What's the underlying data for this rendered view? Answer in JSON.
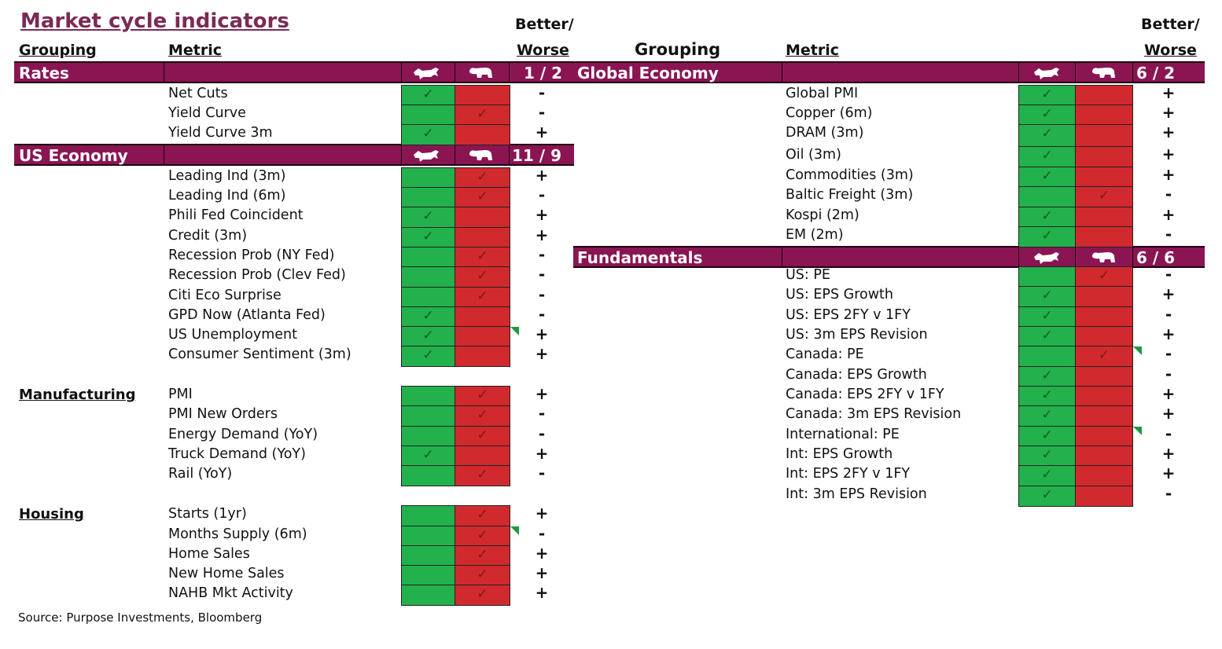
{
  "title": "Market cycle indicators",
  "headers": {
    "grouping": "Grouping",
    "metric": "Metric",
    "better": "Better/",
    "worse": "Worse",
    "right_grouping": "Grouping",
    "right_metric": "Metric",
    "right_better": "Better/",
    "right_worse": "Worse"
  },
  "icons": {
    "bull": "bull-icon",
    "bear": "bear-icon",
    "check": "✓"
  },
  "colors": {
    "band": "#8a1552",
    "green": "#22b14c",
    "red": "#d02a2f",
    "title": "#7b2a55"
  },
  "bands": {
    "rates": {
      "label": "Rates",
      "score": "1 / 2"
    },
    "us_economy": {
      "label": "US Economy",
      "score": "11 / 9"
    },
    "global_economy": {
      "label": "Global Economy",
      "score": "6 / 2"
    },
    "fundamentals": {
      "label": "Fundamentals",
      "score": "6 / 6"
    }
  },
  "sections": {
    "manufacturing": "Manufacturing",
    "housing": "Housing"
  },
  "left_rows": [
    {
      "metric": "Net Cuts",
      "check": "bull",
      "sign": "-"
    },
    {
      "metric": "Yield Curve",
      "check": "bear",
      "sign": "-"
    },
    {
      "metric": "Yield Curve 3m",
      "check": "bull",
      "sign": "+"
    },
    {
      "metric": "Leading Ind (3m)",
      "check": "bear",
      "sign": "+"
    },
    {
      "metric": "Leading Ind (6m)",
      "check": "bear",
      "sign": "-"
    },
    {
      "metric": "Phili Fed Coincident",
      "check": "bull",
      "sign": "+"
    },
    {
      "metric": "Credit (3m)",
      "check": "bull",
      "sign": "+"
    },
    {
      "metric": "Recession Prob (NY Fed)",
      "check": "bear",
      "sign": "-"
    },
    {
      "metric": "Recession Prob (Clev Fed)",
      "check": "bear",
      "sign": "-"
    },
    {
      "metric": "Citi Eco Surprise",
      "check": "bear",
      "sign": "-"
    },
    {
      "metric": "GPD Now (Atlanta Fed)",
      "check": "bull",
      "sign": "-"
    },
    {
      "metric": "US Unemployment",
      "check": "bull",
      "sign": "+"
    },
    {
      "metric": "Consumer Sentiment (3m)",
      "check": "bull",
      "sign": "+"
    },
    {
      "metric": "PMI",
      "check": "bear",
      "sign": "+"
    },
    {
      "metric": "PMI New Orders",
      "check": "bear",
      "sign": "-"
    },
    {
      "metric": "Energy Demand (YoY)",
      "check": "bear",
      "sign": "-"
    },
    {
      "metric": "Truck Demand (YoY)",
      "check": "bull",
      "sign": "+"
    },
    {
      "metric": "Rail (YoY)",
      "check": "bear",
      "sign": "-"
    },
    {
      "metric": "Starts (1yr)",
      "check": "bear",
      "sign": "+"
    },
    {
      "metric": "Months Supply (6m)",
      "check": "bear",
      "sign": "-"
    },
    {
      "metric": "Home Sales",
      "check": "bear",
      "sign": "+"
    },
    {
      "metric": "New Home Sales",
      "check": "bear",
      "sign": "+"
    },
    {
      "metric": "NAHB Mkt Activity",
      "check": "bear",
      "sign": "+"
    }
  ],
  "right_rows": [
    {
      "metric": "Global PMI",
      "check": "bull",
      "sign": "+"
    },
    {
      "metric": "Copper (6m)",
      "check": "bull",
      "sign": "+"
    },
    {
      "metric": "DRAM (3m)",
      "check": "bull",
      "sign": "+"
    },
    {
      "metric": "Oil (3m)",
      "check": "bull",
      "sign": "+"
    },
    {
      "metric": "Commodities (3m)",
      "check": "bull",
      "sign": "+"
    },
    {
      "metric": "Baltic Freight (3m)",
      "check": "bear",
      "sign": "-"
    },
    {
      "metric": "Kospi (2m)",
      "check": "bull",
      "sign": "+"
    },
    {
      "metric": "EM (2m)",
      "check": "bull",
      "sign": "-"
    },
    {
      "metric": "US: PE",
      "check": "bear",
      "sign": "-"
    },
    {
      "metric": "US: EPS Growth",
      "check": "bull",
      "sign": "+"
    },
    {
      "metric": "US: EPS 2FY v 1FY",
      "check": "bull",
      "sign": "-"
    },
    {
      "metric": "US: 3m EPS Revision",
      "check": "bull",
      "sign": "+"
    },
    {
      "metric": "Canada: PE",
      "check": "bear",
      "sign": "-"
    },
    {
      "metric": "Canada: EPS Growth",
      "check": "bull",
      "sign": "-"
    },
    {
      "metric": "Canada: EPS 2FY v 1FY",
      "check": "bull",
      "sign": "+"
    },
    {
      "metric": "Canada: 3m EPS Revision",
      "check": "bull",
      "sign": "+"
    },
    {
      "metric": "International: PE",
      "check": "bull",
      "sign": "-"
    },
    {
      "metric": "Int: EPS Growth",
      "check": "bull",
      "sign": "+"
    },
    {
      "metric": "Int: EPS 2FY v 1FY",
      "check": "bull",
      "sign": "+"
    },
    {
      "metric": "Int: 3m EPS Revision",
      "check": "bull",
      "sign": "-"
    }
  ],
  "source": "Source: Purpose Investments, Bloomberg"
}
